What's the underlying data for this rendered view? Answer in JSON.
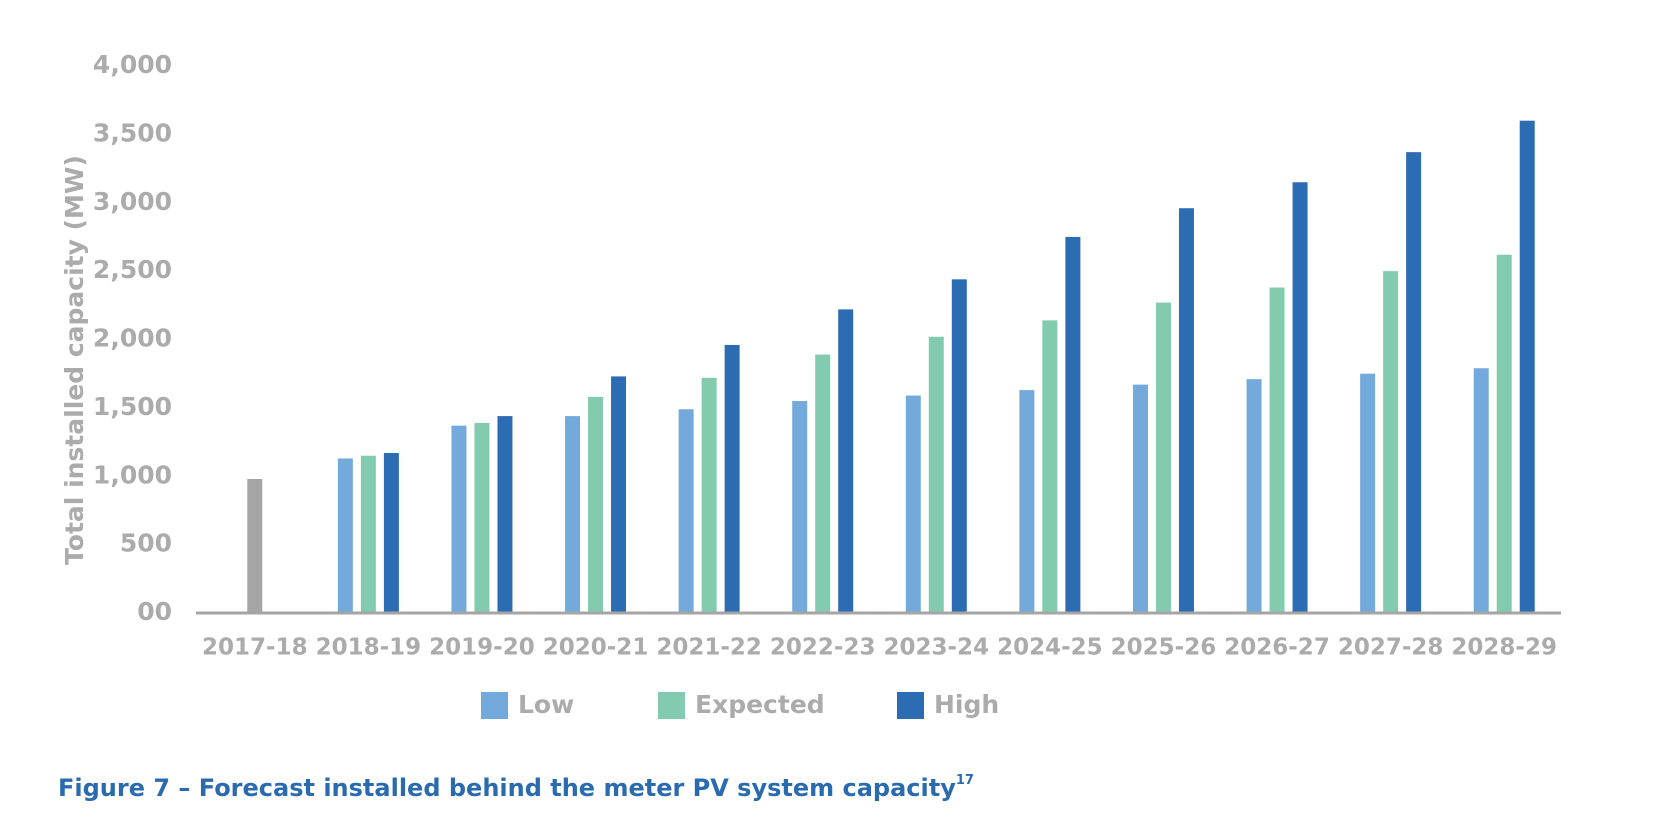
{
  "chart_data": {
    "type": "bar",
    "y_label": "Total installed capacity (MW)",
    "caption": "Figure 7 – Forecast installed behind the meter PV system capacity",
    "caption_note": "17",
    "categories": [
      "2017-18",
      "2018-19",
      "2019-20",
      "2020-21",
      "2021-22",
      "2022-23",
      "2023-24",
      "2024-25",
      "2025-26",
      "2026-27",
      "2027-28",
      "2028-29"
    ],
    "series": [
      {
        "color": "#a5a5a5",
        "values": [
          980,
          null,
          null,
          null,
          null,
          null,
          null,
          null,
          null,
          null,
          null,
          null
        ]
      },
      {
        "name": "Low",
        "color": "#74aadb",
        "values": [
          null,
          1130,
          1370,
          1440,
          1490,
          1550,
          1590,
          1630,
          1670,
          1710,
          1750,
          1790
        ]
      },
      {
        "name": "Expected",
        "color": "#82cbae",
        "values": [
          null,
          1150,
          1390,
          1580,
          1720,
          1890,
          2020,
          2140,
          2270,
          2380,
          2500,
          2620
        ]
      },
      {
        "name": "High",
        "color": "#2b6cb3",
        "values": [
          null,
          1170,
          1440,
          1730,
          1960,
          2220,
          2440,
          2750,
          2960,
          3150,
          3370,
          3600
        ]
      }
    ],
    "ylim": [
      0,
      4000
    ],
    "yticks": [
      {
        "value": 0,
        "label": "00"
      },
      500,
      {
        "value": 1000,
        "label": "1,000"
      },
      {
        "value": 1500,
        "label": "1,500"
      },
      {
        "value": 2000,
        "label": "2,000"
      },
      {
        "value": 2500,
        "label": "2,500"
      },
      {
        "value": 3000,
        "label": "3,000"
      },
      {
        "value": 3500,
        "label": "3,500"
      },
      {
        "value": 4000,
        "label": "4,000"
      }
    ],
    "grid": false
  }
}
